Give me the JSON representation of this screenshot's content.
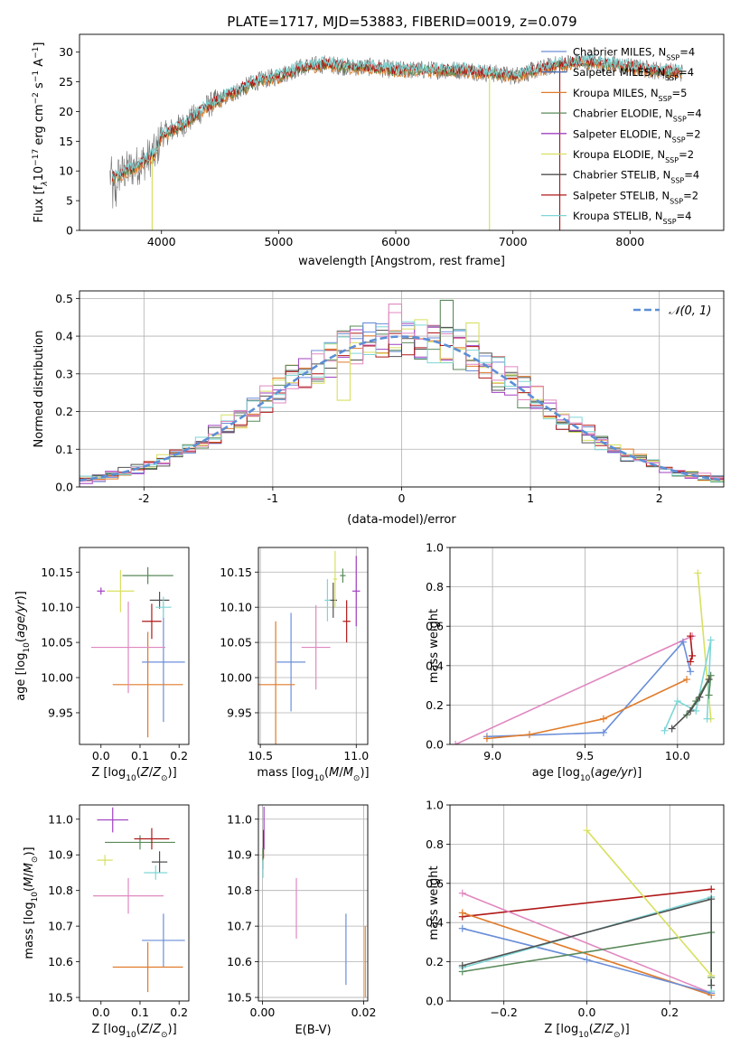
{
  "title": "PLATE=1717, MJD=53883, FIBERID=0019, z=0.079",
  "colors": {
    "Chabrier MILES": "#6a8ed8",
    "Salpeter MILES": "#4b6fb6",
    "Kroupa MILES": "#e07b2a",
    "Chabrier ELODIE": "#5a8a5a",
    "Salpeter ELODIE": "#a040c0",
    "Kroupa ELODIE": "#d8e060",
    "Chabrier STELIB": "#505050",
    "Salpeter STELIB": "#b01818",
    "Kroupa STELIB": "#7fd6d6",
    "Pink": "#e088c0",
    "Data": "#707070",
    "Norm": "#5b8fd6",
    "Grid": "#b0b0b0"
  },
  "chart_data": [
    {
      "type": "line",
      "id": "spectrum",
      "xlabel": "wavelength [Angstrom, rest frame]",
      "ylabel": "Flux [f_λ 10^-17 erg cm^-2 s^-1 A^-1]",
      "xlim": [
        3300,
        8800
      ],
      "ylim": [
        0,
        33
      ],
      "xticks": [
        4000,
        5000,
        6000,
        7000,
        8000
      ],
      "yticks": [
        0,
        5,
        10,
        15,
        20,
        25,
        30
      ],
      "grid": false,
      "legend_position": "top-right",
      "legend": [
        {
          "label": "Chabrier MILES, N_SSP=4",
          "color": "#6a8ed8"
        },
        {
          "label": "Salpeter MILES, N_SSP=4",
          "color": "#4b6fb6"
        },
        {
          "label": "Kroupa MILES, N_SSP=5",
          "color": "#e07b2a"
        },
        {
          "label": "Chabrier ELODIE, N_SSP=4",
          "color": "#5a8a5a"
        },
        {
          "label": "Salpeter ELODIE, N_SSP=2",
          "color": "#a040c0"
        },
        {
          "label": "Kroupa ELODIE, N_SSP=2",
          "color": "#d8e060"
        },
        {
          "label": "Chabrier STELIB, N_SSP=4",
          "color": "#505050"
        },
        {
          "label": "Salpeter STELIB, N_SSP=2",
          "color": "#b01818"
        },
        {
          "label": "Kroupa STELIB, N_SSP=4",
          "color": "#7fd6d6"
        }
      ],
      "continuum": {
        "x": [
          3600,
          3800,
          3950,
          4000,
          4100,
          4200,
          4300,
          4400,
          4600,
          4800,
          5000,
          5200,
          5400,
          5600,
          5800,
          6000,
          6200,
          6400,
          6600,
          6800,
          7000,
          7200,
          7400,
          7600,
          7800,
          8000,
          8200,
          8450
        ],
        "y": [
          9,
          11,
          13,
          16,
          17,
          18,
          19.5,
          21,
          23,
          25,
          26,
          27.5,
          28,
          27.5,
          27.5,
          27,
          27,
          27,
          27,
          26.5,
          26,
          27,
          28,
          28.5,
          28,
          27.5,
          27,
          26.5
        ]
      },
      "drops": [
        {
          "x": 3920,
          "color": "#d8e060"
        },
        {
          "x": 6800,
          "color": "#d8e060"
        },
        {
          "x": 7400,
          "color": "#b01818"
        }
      ]
    },
    {
      "type": "histogram",
      "id": "residuals",
      "xlabel": "(data-model)/error",
      "ylabel": "Normed distribution",
      "xlim": [
        -2.5,
        2.5
      ],
      "ylim": [
        0,
        0.52
      ],
      "xticks": [
        -2,
        -1,
        0,
        1,
        2
      ],
      "yticks": [
        0.0,
        0.1,
        0.2,
        0.3,
        0.4,
        0.5
      ],
      "grid": true,
      "legend": [
        {
          "label": "𝒩(0, 1)",
          "style": "dashed",
          "color": "#5b8fd6"
        }
      ],
      "bin_width": 0.1,
      "x_start": -2.5,
      "highlights": [
        {
          "color": "#5a8a5a",
          "x0": 0.3,
          "x1": 0.4,
          "y": 0.495
        },
        {
          "color": "#d8e060",
          "x0": 0.5,
          "x1": 0.6,
          "y": 0.435
        },
        {
          "color": "#6a8ed8",
          "x0": -0.3,
          "x1": -0.2,
          "y": 0.435
        },
        {
          "color": "#e088c0",
          "x0": -0.1,
          "x1": 0.0,
          "y": 0.485
        },
        {
          "color": "#d8e060",
          "x0": -0.5,
          "x1": -0.4,
          "y": 0.23
        }
      ]
    },
    {
      "type": "scatter",
      "id": "age-vs-Z",
      "xlabel": "Z [log10(Z/Z⊙)]",
      "ylabel": "age [log10(age/yr)]",
      "xlim": [
        -0.055,
        0.225
      ],
      "ylim": [
        9.905,
        10.185
      ],
      "xticks": [
        0.0,
        0.1,
        0.2
      ],
      "xticklabels": [
        "0.0",
        "0.1",
        "0.2"
      ],
      "yticks": [
        9.95,
        10.0,
        10.05,
        10.1,
        10.15
      ],
      "grid": false,
      "points": [
        {
          "x": 0.16,
          "y": 10.022,
          "xerr": 0.055,
          "yerr": 0.085,
          "color": "#6a8ed8"
        },
        {
          "x": 0.12,
          "y": 9.99,
          "xerr": 0.09,
          "yerr": 0.075,
          "color": "#e07b2a"
        },
        {
          "x": 0.07,
          "y": 10.043,
          "xerr": 0.095,
          "yerr": 0.065,
          "color": "#e088c0"
        },
        {
          "x": 0.12,
          "y": 10.145,
          "xerr": 0.065,
          "yerr": 0.012,
          "color": "#5a8a5a"
        },
        {
          "x": 0.15,
          "y": 10.11,
          "xerr": 0.025,
          "yerr": 0.012,
          "color": "#505050"
        },
        {
          "x": 0.13,
          "y": 10.08,
          "xerr": 0.025,
          "yerr": 0.025,
          "color": "#b01818"
        },
        {
          "x": 0.16,
          "y": 10.1,
          "xerr": 0.02,
          "yerr": 0.015,
          "color": "#7fd6d6"
        },
        {
          "x": 0.05,
          "y": 10.123,
          "xerr": 0.035,
          "yerr": 0.03,
          "color": "#d8e060"
        },
        {
          "x": 0.0,
          "y": 10.123,
          "xerr": 0.01,
          "yerr": 0.005,
          "color": "#a040c0"
        }
      ]
    },
    {
      "type": "scatter",
      "id": "age-vs-mass",
      "xlabel": "mass [log10(M/M⊙)]",
      "ylabel": "",
      "xlim": [
        10.49,
        11.06
      ],
      "ylim": [
        9.905,
        10.185
      ],
      "xticks": [
        10.5,
        11.0
      ],
      "xticklabels": [
        "10.5",
        "11.0"
      ],
      "yticks": [
        9.95,
        10.0,
        10.05,
        10.1,
        10.15
      ],
      "grid": true,
      "points": [
        {
          "x": 10.66,
          "y": 10.022,
          "xerr": 0.075,
          "yerr": 0.07,
          "color": "#6a8ed8"
        },
        {
          "x": 10.58,
          "y": 9.99,
          "xerr": 0.1,
          "yerr": 0.09,
          "color": "#e07b2a"
        },
        {
          "x": 10.79,
          "y": 10.043,
          "xerr": 0.075,
          "yerr": 0.06,
          "color": "#e088c0"
        },
        {
          "x": 10.93,
          "y": 10.145,
          "xerr": 0.015,
          "yerr": 0.01,
          "color": "#5a8a5a"
        },
        {
          "x": 10.88,
          "y": 10.11,
          "xerr": 0.02,
          "yerr": 0.025,
          "color": "#505050"
        },
        {
          "x": 10.95,
          "y": 10.08,
          "xerr": 0.02,
          "yerr": 0.03,
          "color": "#b01818"
        },
        {
          "x": 10.85,
          "y": 10.11,
          "xerr": 0.015,
          "yerr": 0.03,
          "color": "#7fd6d6"
        },
        {
          "x": 10.89,
          "y": 10.14,
          "xerr": 0.01,
          "yerr": 0.04,
          "color": "#d8e060"
        },
        {
          "x": 11.0,
          "y": 10.123,
          "xerr": 0.02,
          "yerr": 0.05,
          "color": "#a040c0"
        }
      ]
    },
    {
      "type": "line",
      "id": "massweight-vs-age",
      "xlabel": "age [log10(age/yr)]",
      "ylabel": "mass weight",
      "xlim": [
        8.77,
        10.25
      ],
      "ylim": [
        0.0,
        1.0
      ],
      "xticks": [
        9.0,
        9.5,
        10.0
      ],
      "xticklabels": [
        "9.0",
        "9.5",
        "10.0"
      ],
      "yticks": [
        0.0,
        0.2,
        0.4,
        0.6,
        0.8,
        1.0
      ],
      "grid": true,
      "series": [
        {
          "color": "#e088c0",
          "x": [
            8.8,
            10.08
          ],
          "y": [
            0.0,
            0.55
          ]
        },
        {
          "color": "#6a8ed8",
          "x": [
            8.97,
            9.6,
            10.03,
            10.07
          ],
          "y": [
            0.04,
            0.06,
            0.52,
            0.37
          ]
        },
        {
          "color": "#e07b2a",
          "x": [
            8.97,
            9.2,
            9.6,
            10.05
          ],
          "y": [
            0.03,
            0.05,
            0.13,
            0.33
          ]
        },
        {
          "color": "#b01818",
          "x": [
            10.07,
            10.08,
            10.07
          ],
          "y": [
            0.55,
            0.45,
            0.42
          ]
        },
        {
          "color": "#d8e060",
          "x": [
            10.11,
            10.18
          ],
          "y": [
            0.87,
            0.13
          ]
        },
        {
          "color": "#7fd6d6",
          "x": [
            9.93,
            10.0,
            10.1,
            10.18,
            10.16
          ],
          "y": [
            0.07,
            0.22,
            0.17,
            0.53,
            0.13
          ]
        },
        {
          "color": "#5a8a5a",
          "x": [
            10.05,
            10.1,
            10.18,
            10.17
          ],
          "y": [
            0.15,
            0.22,
            0.35,
            0.25
          ]
        },
        {
          "color": "#505050",
          "x": [
            9.97,
            10.07,
            10.12,
            10.17
          ],
          "y": [
            0.08,
            0.17,
            0.24,
            0.33
          ]
        }
      ]
    },
    {
      "type": "scatter",
      "id": "mass-vs-Z",
      "xlabel": "Z [log10(Z/Z⊙)]",
      "ylabel": "mass [log10(M/M⊙)]",
      "xlim": [
        -0.055,
        0.225
      ],
      "ylim": [
        10.49,
        11.04
      ],
      "xticks": [
        0.0,
        0.1,
        0.2
      ],
      "xticklabels": [
        "0.0",
        "0.1",
        "0.2"
      ],
      "yticks": [
        10.5,
        10.6,
        10.7,
        10.8,
        10.9,
        11.0
      ],
      "grid": false,
      "points": [
        {
          "x": 0.16,
          "y": 10.66,
          "xerr": 0.055,
          "yerr": 0.075,
          "color": "#6a8ed8"
        },
        {
          "x": 0.12,
          "y": 10.585,
          "xerr": 0.09,
          "yerr": 0.07,
          "color": "#e07b2a"
        },
        {
          "x": 0.07,
          "y": 10.785,
          "xerr": 0.09,
          "yerr": 0.05,
          "color": "#e088c0"
        },
        {
          "x": 0.1,
          "y": 10.935,
          "xerr": 0.09,
          "yerr": 0.02,
          "color": "#5a8a5a"
        },
        {
          "x": 0.15,
          "y": 10.88,
          "xerr": 0.02,
          "yerr": 0.03,
          "color": "#505050"
        },
        {
          "x": 0.13,
          "y": 10.945,
          "xerr": 0.045,
          "yerr": 0.03,
          "color": "#b01818"
        },
        {
          "x": 0.14,
          "y": 10.85,
          "xerr": 0.03,
          "yerr": 0.02,
          "color": "#7fd6d6"
        },
        {
          "x": 0.01,
          "y": 10.885,
          "xerr": 0.02,
          "yerr": 0.015,
          "color": "#d8e060"
        },
        {
          "x": 0.03,
          "y": 10.998,
          "xerr": 0.04,
          "yerr": 0.035,
          "color": "#a040c0"
        }
      ]
    },
    {
      "type": "scatter",
      "id": "mass-vs-EBV",
      "xlabel": "E(B-V)",
      "ylabel": "",
      "xlim": [
        -0.0008,
        0.0208
      ],
      "ylim": [
        10.49,
        11.04
      ],
      "xticks": [
        0.0,
        0.02
      ],
      "xticklabels": [
        "0.00",
        "0.02"
      ],
      "yticks": [
        10.5,
        10.6,
        10.7,
        10.8,
        10.9,
        11.0
      ],
      "grid": true,
      "points": [
        {
          "x": 0.0165,
          "y": 10.635,
          "yerr": 0.1,
          "color": "#6a8ed8"
        },
        {
          "x": 0.0203,
          "y": 10.6,
          "yerr": 0.1,
          "color": "#e07b2a"
        },
        {
          "x": 0.0067,
          "y": 10.75,
          "yerr": 0.085,
          "color": "#e088c0"
        },
        {
          "x": 0.0003,
          "y": 10.975,
          "yerr": 0.06,
          "color": "#a040c0"
        },
        {
          "x": 0.0002,
          "y": 10.93,
          "yerr": 0.04,
          "color": "#b01818"
        },
        {
          "x": 0.0001,
          "y": 10.89,
          "yerr": 0.03,
          "color": "#5a8a5a"
        },
        {
          "x": 0.0001,
          "y": 10.86,
          "yerr": 0.025,
          "color": "#7fd6d6"
        }
      ]
    },
    {
      "type": "line",
      "id": "massweight-vs-Z",
      "xlabel": "Z [log10(Z/Z⊙)]",
      "ylabel": "mass weight",
      "xlim": [
        -0.33,
        0.33
      ],
      "ylim": [
        0.0,
        1.0
      ],
      "xticks": [
        -0.2,
        0.0,
        0.2
      ],
      "xticklabels": [
        "−0.2",
        "0.0",
        "0.2"
      ],
      "yticks": [
        0.0,
        0.2,
        0.4,
        0.6,
        0.8,
        1.0
      ],
      "grid": true,
      "series": [
        {
          "color": "#b01818",
          "x": [
            -0.3,
            0.3
          ],
          "y": [
            0.43,
            0.57
          ]
        },
        {
          "color": "#e088c0",
          "x": [
            -0.3,
            0.3
          ],
          "y": [
            0.55,
            0.04
          ]
        },
        {
          "color": "#e07b2a",
          "x": [
            -0.3,
            0.3
          ],
          "y": [
            0.45,
            0.03
          ]
        },
        {
          "color": "#6a8ed8",
          "x": [
            -0.3,
            0.0,
            0.3
          ],
          "y": [
            0.37,
            0.21,
            0.04
          ]
        },
        {
          "color": "#5a8a5a",
          "x": [
            -0.3,
            0.3,
            0.3
          ],
          "y": [
            0.15,
            0.35,
            0.12
          ]
        },
        {
          "color": "#7fd6d6",
          "x": [
            -0.3,
            0.3,
            0.3
          ],
          "y": [
            0.17,
            0.53,
            0.05
          ]
        },
        {
          "color": "#505050",
          "x": [
            -0.3,
            0.3,
            0.3
          ],
          "y": [
            0.18,
            0.52,
            0.08
          ]
        },
        {
          "color": "#d8e060",
          "x": [
            0.0,
            0.3
          ],
          "y": [
            0.87,
            0.13
          ]
        }
      ]
    }
  ]
}
